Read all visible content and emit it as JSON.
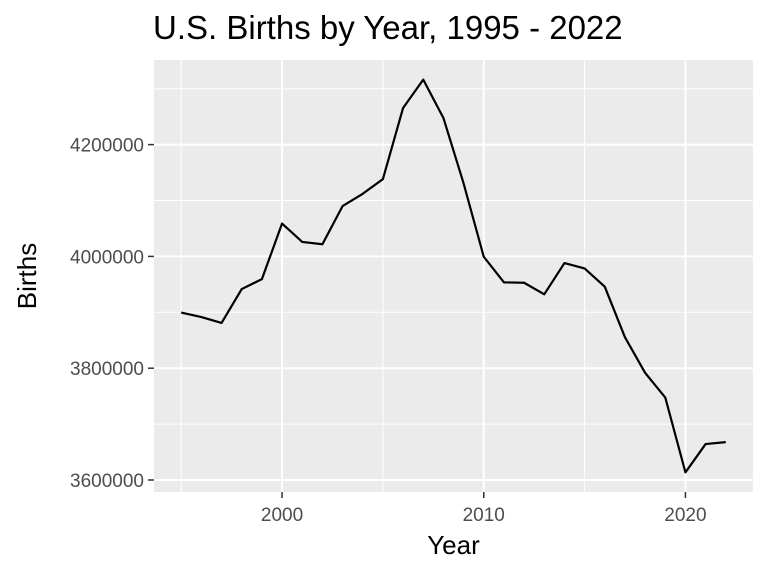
{
  "chart_data": {
    "type": "line",
    "title": "U.S. Births by Year, 1995 - 2022",
    "xlabel": "Year",
    "ylabel": "Births",
    "x": [
      1995,
      1996,
      1997,
      1998,
      1999,
      2000,
      2001,
      2002,
      2003,
      2004,
      2005,
      2006,
      2007,
      2008,
      2009,
      2010,
      2011,
      2012,
      2013,
      2014,
      2015,
      2016,
      2017,
      2018,
      2019,
      2020,
      2021,
      2022
    ],
    "series": [
      {
        "values": [
          3899589,
          3891494,
          3880894,
          3941553,
          3959417,
          4058814,
          4025933,
          4021726,
          4089950,
          4112052,
          4138349,
          4265555,
          4316233,
          4247694,
          4130665,
          3999386,
          3953590,
          3952841,
          3932181,
          3988076,
          3978497,
          3945875,
          3855500,
          3791712,
          3747540,
          3613647,
          3664292,
          3667758
        ]
      }
    ],
    "xlim": [
      1993.65,
      2023.35
    ],
    "ylim": [
      3578518,
      4351362
    ],
    "xticks": [
      2000,
      2010,
      2020
    ],
    "xtick_labels": [
      "2000",
      "2010",
      "2020"
    ],
    "yticks": [
      3600000,
      3800000,
      4000000,
      4200000
    ],
    "ytick_labels": [
      "3600000",
      "3800000",
      "4000000",
      "4200000"
    ],
    "grid": true,
    "legend": "none",
    "colors": {
      "panel_background": "#ebebeb",
      "grid": "#ffffff",
      "line": "#000000",
      "tick_mark": "#333333",
      "tick_label": "#4d4d4d"
    }
  }
}
